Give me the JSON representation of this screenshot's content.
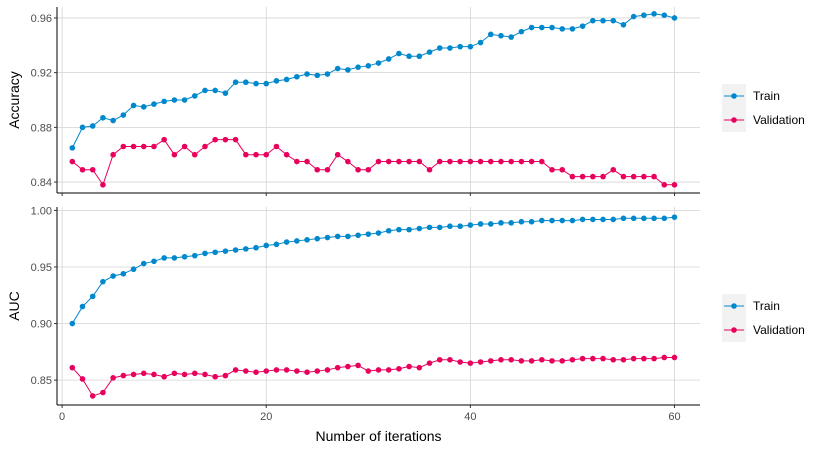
{
  "chart_data": [
    {
      "type": "line",
      "title": "",
      "xlabel": "",
      "ylabel": "Accuracy",
      "xlim": [
        -0.5,
        62.5
      ],
      "ylim": [
        0.832,
        0.968
      ],
      "x_ticks": [
        0,
        20,
        40,
        60
      ],
      "x_tick_labels": [],
      "y_ticks": [
        0.84,
        0.88,
        0.92,
        0.96
      ],
      "y_tick_labels": [
        "0.84",
        "0.88",
        "0.92",
        "0.96"
      ],
      "grid": true,
      "legend_position": "right",
      "series": [
        {
          "name": "Train",
          "color": "#0088cc",
          "x": [
            1,
            2,
            3,
            4,
            5,
            6,
            7,
            8,
            9,
            10,
            11,
            12,
            13,
            14,
            15,
            16,
            17,
            18,
            19,
            20,
            21,
            22,
            23,
            24,
            25,
            26,
            27,
            28,
            29,
            30,
            31,
            32,
            33,
            34,
            35,
            36,
            37,
            38,
            39,
            40,
            41,
            42,
            43,
            44,
            45,
            46,
            47,
            48,
            49,
            50,
            51,
            52,
            53,
            54,
            55,
            56,
            57,
            58,
            59,
            60
          ],
          "values": [
            0.865,
            0.88,
            0.881,
            0.887,
            0.885,
            0.889,
            0.896,
            0.895,
            0.897,
            0.899,
            0.9,
            0.9,
            0.903,
            0.907,
            0.907,
            0.905,
            0.913,
            0.913,
            0.912,
            0.912,
            0.914,
            0.915,
            0.917,
            0.919,
            0.918,
            0.919,
            0.923,
            0.922,
            0.924,
            0.925,
            0.927,
            0.93,
            0.934,
            0.932,
            0.932,
            0.935,
            0.938,
            0.938,
            0.939,
            0.939,
            0.942,
            0.948,
            0.947,
            0.946,
            0.95,
            0.953,
            0.953,
            0.953,
            0.952,
            0.952,
            0.954,
            0.958,
            0.958,
            0.958,
            0.955,
            0.961,
            0.962,
            0.963,
            0.962,
            0.96
          ]
        },
        {
          "name": "Validation",
          "color": "#e8005c",
          "x": [
            1,
            2,
            3,
            4,
            5,
            6,
            7,
            8,
            9,
            10,
            11,
            12,
            13,
            14,
            15,
            16,
            17,
            18,
            19,
            20,
            21,
            22,
            23,
            24,
            25,
            26,
            27,
            28,
            29,
            30,
            31,
            32,
            33,
            34,
            35,
            36,
            37,
            38,
            39,
            40,
            41,
            42,
            43,
            44,
            45,
            46,
            47,
            48,
            49,
            50,
            51,
            52,
            53,
            54,
            55,
            56,
            57,
            58,
            59,
            60
          ],
          "values": [
            0.855,
            0.849,
            0.849,
            0.838,
            0.86,
            0.866,
            0.866,
            0.866,
            0.866,
            0.871,
            0.86,
            0.866,
            0.86,
            0.866,
            0.871,
            0.871,
            0.871,
            0.86,
            0.86,
            0.86,
            0.866,
            0.86,
            0.855,
            0.855,
            0.849,
            0.849,
            0.86,
            0.855,
            0.849,
            0.849,
            0.855,
            0.855,
            0.855,
            0.855,
            0.855,
            0.849,
            0.855,
            0.855,
            0.855,
            0.855,
            0.855,
            0.855,
            0.855,
            0.855,
            0.855,
            0.855,
            0.855,
            0.849,
            0.849,
            0.844,
            0.844,
            0.844,
            0.844,
            0.849,
            0.844,
            0.844,
            0.844,
            0.844,
            0.838,
            0.838
          ]
        }
      ]
    },
    {
      "type": "line",
      "title": "",
      "xlabel": "Number of iterations",
      "ylabel": "AUC",
      "xlim": [
        -0.5,
        62.5
      ],
      "ylim": [
        0.828,
        1.003
      ],
      "x_ticks": [
        0,
        20,
        40,
        60
      ],
      "x_tick_labels": [
        "0",
        "20",
        "40",
        "60"
      ],
      "y_ticks": [
        0.85,
        0.9,
        0.95,
        1.0
      ],
      "y_tick_labels": [
        "0.85",
        "0.90",
        "0.95",
        "1.00"
      ],
      "grid": true,
      "legend_position": "right",
      "series": [
        {
          "name": "Train",
          "color": "#0088cc",
          "x": [
            1,
            2,
            3,
            4,
            5,
            6,
            7,
            8,
            9,
            10,
            11,
            12,
            13,
            14,
            15,
            16,
            17,
            18,
            19,
            20,
            21,
            22,
            23,
            24,
            25,
            26,
            27,
            28,
            29,
            30,
            31,
            32,
            33,
            34,
            35,
            36,
            37,
            38,
            39,
            40,
            41,
            42,
            43,
            44,
            45,
            46,
            47,
            48,
            49,
            50,
            51,
            52,
            53,
            54,
            55,
            56,
            57,
            58,
            59,
            60
          ],
          "values": [
            0.9,
            0.915,
            0.924,
            0.937,
            0.942,
            0.944,
            0.948,
            0.953,
            0.955,
            0.958,
            0.958,
            0.959,
            0.96,
            0.962,
            0.963,
            0.964,
            0.965,
            0.966,
            0.967,
            0.969,
            0.97,
            0.972,
            0.973,
            0.974,
            0.975,
            0.976,
            0.977,
            0.977,
            0.978,
            0.979,
            0.98,
            0.982,
            0.983,
            0.983,
            0.984,
            0.985,
            0.985,
            0.986,
            0.986,
            0.987,
            0.988,
            0.988,
            0.989,
            0.989,
            0.99,
            0.99,
            0.991,
            0.991,
            0.991,
            0.991,
            0.992,
            0.992,
            0.992,
            0.992,
            0.993,
            0.993,
            0.993,
            0.993,
            0.993,
            0.994
          ]
        },
        {
          "name": "Validation",
          "color": "#e8005c",
          "x": [
            1,
            2,
            3,
            4,
            5,
            6,
            7,
            8,
            9,
            10,
            11,
            12,
            13,
            14,
            15,
            16,
            17,
            18,
            19,
            20,
            21,
            22,
            23,
            24,
            25,
            26,
            27,
            28,
            29,
            30,
            31,
            32,
            33,
            34,
            35,
            36,
            37,
            38,
            39,
            40,
            41,
            42,
            43,
            44,
            45,
            46,
            47,
            48,
            49,
            50,
            51,
            52,
            53,
            54,
            55,
            56,
            57,
            58,
            59,
            60
          ],
          "values": [
            0.861,
            0.851,
            0.836,
            0.839,
            0.852,
            0.854,
            0.855,
            0.856,
            0.855,
            0.853,
            0.856,
            0.855,
            0.856,
            0.855,
            0.853,
            0.854,
            0.859,
            0.858,
            0.857,
            0.858,
            0.859,
            0.859,
            0.858,
            0.857,
            0.858,
            0.859,
            0.861,
            0.862,
            0.863,
            0.858,
            0.859,
            0.859,
            0.86,
            0.862,
            0.861,
            0.865,
            0.868,
            0.868,
            0.866,
            0.865,
            0.866,
            0.867,
            0.868,
            0.868,
            0.867,
            0.867,
            0.868,
            0.867,
            0.867,
            0.868,
            0.869,
            0.869,
            0.869,
            0.868,
            0.868,
            0.869,
            0.869,
            0.869,
            0.87,
            0.87
          ]
        }
      ]
    }
  ]
}
